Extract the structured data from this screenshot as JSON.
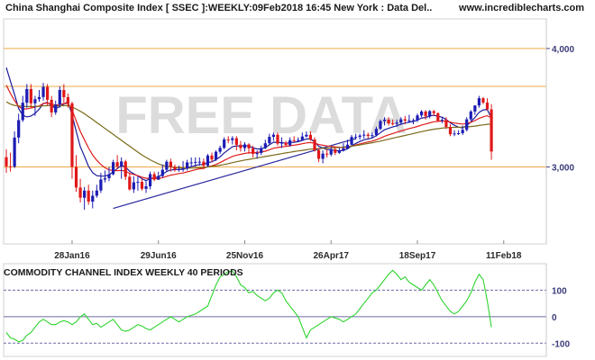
{
  "header": {
    "title": "China Shanghai Composite Index [ SSEC ]:WEEKLY:09Feb2018 16:45 New York : Data Del..",
    "website": "www.incrediblecharts.com"
  },
  "watermark": "FREE DATA",
  "colors": {
    "up": "#1c1cb4",
    "down": "#e01818",
    "ma_fast": "#1c1c9c",
    "ma_mid": "#e01c1c",
    "ma_slow": "#7a6a18",
    "trendline": "#2a2aa0",
    "hline": "#f0a848",
    "cci_line": "#2ed42e",
    "watermark": "#dcdcdc",
    "frame": "#d0d0d0"
  },
  "chart_data": [
    {
      "type": "candlestick",
      "title": "China Shanghai Composite Index [ SSEC ]:WEEKLY:09Feb2018 16:45 New York : Data Del..",
      "x_tick_labels": [
        "28Jan16",
        "29Jun16",
        "25Nov16",
        "26Apr17",
        "18Sep17",
        "11Feb18"
      ],
      "x_tick_index": [
        16,
        37,
        58,
        79,
        100,
        121
      ],
      "y_ticks": [
        3000,
        4000
      ],
      "y_tick_labels": [
        "3,000",
        "4,000"
      ],
      "ylim": [
        2350,
        4250
      ],
      "horizontal_lines": [
        4000,
        3680,
        3000
      ],
      "trendline": {
        "from": [
          26,
          2650
        ],
        "to": [
          85,
          3240
        ]
      },
      "series": {
        "open": [
          3082,
          3005,
          3003,
          3248,
          3395,
          3542,
          3658,
          3537,
          3572,
          3590,
          3676,
          3567,
          3460,
          3526,
          3650,
          3589,
          3537,
          3000,
          2826,
          2740,
          2800,
          2707,
          2757,
          2801,
          2894,
          2905,
          2938,
          3040,
          3004,
          3046,
          2917,
          2810,
          2870,
          2874,
          2815,
          2836,
          2939,
          2892,
          2923,
          2976,
          3044,
          3000,
          2979,
          2980,
          2988,
          3038,
          3038,
          3042,
          3044,
          3010,
          3096,
          3063,
          3128,
          3161,
          3232,
          3227,
          3242,
          3187,
          3159,
          3190,
          3157,
          3109,
          3118,
          3158,
          3200,
          3254,
          3272,
          3197,
          3205,
          3184,
          3226,
          3222,
          3228,
          3257,
          3271,
          3231,
          3141,
          3069,
          3112,
          3105,
          3149,
          3119,
          3140,
          3156,
          3188,
          3253,
          3253,
          3265,
          3272,
          3261,
          3268,
          3321,
          3387,
          3399,
          3368,
          3365,
          3375,
          3402,
          3391,
          3394,
          3394,
          3435,
          3468,
          3428,
          3471,
          3454,
          3390,
          3397,
          3338,
          3276,
          3282,
          3285,
          3313,
          3402,
          3468,
          3519,
          3580,
          3543,
          3486
        ],
        "high": [
          3150,
          3120,
          3300,
          3450,
          3600,
          3700,
          3700,
          3600,
          3650,
          3710,
          3700,
          3600,
          3560,
          3680,
          3700,
          3620,
          3550,
          3100,
          2900,
          2830,
          2850,
          2800,
          2850,
          2950,
          2970,
          3000,
          3060,
          3100,
          3080,
          3060,
          2950,
          2920,
          2920,
          2900,
          2880,
          2960,
          2960,
          2960,
          3020,
          3060,
          3070,
          3020,
          3010,
          3050,
          3060,
          3080,
          3080,
          3080,
          3070,
          3110,
          3120,
          3140,
          3180,
          3250,
          3260,
          3260,
          3260,
          3220,
          3210,
          3200,
          3180,
          3140,
          3180,
          3230,
          3280,
          3290,
          3290,
          3250,
          3220,
          3250,
          3260,
          3250,
          3290,
          3300,
          3300,
          3250,
          3160,
          3140,
          3150,
          3170,
          3170,
          3160,
          3200,
          3230,
          3270,
          3280,
          3280,
          3310,
          3290,
          3290,
          3340,
          3400,
          3420,
          3420,
          3400,
          3400,
          3420,
          3430,
          3440,
          3410,
          3450,
          3480,
          3480,
          3480,
          3480,
          3460,
          3420,
          3420,
          3360,
          3310,
          3310,
          3350,
          3420,
          3480,
          3520,
          3600,
          3590,
          3580,
          3530
        ],
        "low": [
          2950,
          2960,
          2990,
          3200,
          3380,
          3500,
          3500,
          3430,
          3550,
          3560,
          3520,
          3420,
          3440,
          3500,
          3540,
          3500,
          2900,
          2790,
          2700,
          2638,
          2680,
          2650,
          2740,
          2780,
          2870,
          2880,
          2930,
          2980,
          2900,
          2890,
          2800,
          2780,
          2800,
          2800,
          2780,
          2810,
          2880,
          2890,
          2910,
          2960,
          2960,
          2960,
          2960,
          2960,
          2970,
          3000,
          3000,
          3010,
          2980,
          3000,
          3040,
          3050,
          3110,
          3150,
          3200,
          3190,
          3140,
          3130,
          3130,
          3110,
          3080,
          3070,
          3100,
          3150,
          3190,
          3220,
          3180,
          3160,
          3170,
          3170,
          3210,
          3210,
          3220,
          3250,
          3220,
          3130,
          3040,
          3030,
          3080,
          3090,
          3100,
          3110,
          3130,
          3150,
          3180,
          3230,
          3230,
          3240,
          3240,
          3240,
          3260,
          3310,
          3350,
          3350,
          3350,
          3340,
          3360,
          3360,
          3370,
          3360,
          3380,
          3420,
          3400,
          3410,
          3430,
          3380,
          3370,
          3320,
          3260,
          3260,
          3270,
          3270,
          3300,
          3390,
          3440,
          3500,
          3530,
          3480,
          3060
        ],
        "close": [
          3005,
          3003,
          3248,
          3395,
          3542,
          3658,
          3537,
          3572,
          3590,
          3676,
          3567,
          3460,
          3526,
          3650,
          3589,
          3537,
          3000,
          2826,
          2740,
          2800,
          2707,
          2757,
          2801,
          2894,
          2905,
          2938,
          3040,
          3004,
          3046,
          2917,
          2810,
          2870,
          2874,
          2815,
          2836,
          2939,
          2892,
          2923,
          2976,
          3044,
          3000,
          2979,
          2980,
          2988,
          3038,
          3038,
          3042,
          3044,
          3010,
          3096,
          3063,
          3128,
          3161,
          3232,
          3227,
          3242,
          3187,
          3159,
          3190,
          3157,
          3109,
          3118,
          3158,
          3200,
          3254,
          3272,
          3197,
          3205,
          3184,
          3226,
          3222,
          3228,
          3257,
          3271,
          3231,
          3141,
          3069,
          3112,
          3105,
          3149,
          3119,
          3140,
          3156,
          3188,
          3253,
          3253,
          3265,
          3272,
          3261,
          3268,
          3321,
          3387,
          3399,
          3368,
          3365,
          3375,
          3402,
          3391,
          3394,
          3394,
          3435,
          3468,
          3428,
          3471,
          3454,
          3390,
          3397,
          3338,
          3276,
          3282,
          3285,
          3313,
          3402,
          3468,
          3519,
          3580,
          3543,
          3486,
          3130
        ]
      },
      "moving_averages": [
        {
          "color": "ma_fast",
          "values": [
            3839,
            3723,
            3612,
            3492,
            3436,
            3422,
            3430,
            3453,
            3488,
            3536,
            3545,
            3518,
            3494,
            3510,
            3530,
            3551,
            3438,
            3301,
            3170,
            3091,
            3004,
            2952,
            2926,
            2922,
            2923,
            2934,
            2959,
            2986,
            3012,
            3000,
            2963,
            2942,
            2924,
            2901,
            2884,
            2902,
            2909,
            2917,
            2937,
            2962,
            2975,
            2977,
            2979,
            2979,
            2991,
            3002,
            3012,
            3020,
            3020,
            3036,
            3043,
            3062,
            3085,
            3118,
            3144,
            3171,
            3178,
            3177,
            3180,
            3176,
            3162,
            3152,
            3153,
            3164,
            3187,
            3209,
            3206,
            3206,
            3200,
            3205,
            3208,
            3213,
            3224,
            3237,
            3236,
            3212,
            3174,
            3160,
            3146,
            3146,
            3139,
            3136,
            3140,
            3152,
            3178,
            3198,
            3215,
            3229,
            3236,
            3245,
            3263,
            3290,
            3314,
            3326,
            3337,
            3347,
            3361,
            3370,
            3378,
            3383,
            3395,
            3413,
            3417,
            3430,
            3437,
            3427,
            3420,
            3400,
            3372,
            3352,
            3336,
            3330,
            3349,
            3381,
            3417,
            3461,
            3482,
            3484,
            3413
          ]
        },
        {
          "color": "ma_mid",
          "values": [
            3690,
            3620,
            3560,
            3510,
            3490,
            3490,
            3497,
            3505,
            3515,
            3535,
            3540,
            3530,
            3523,
            3528,
            3534,
            3536,
            3480,
            3390,
            3300,
            3230,
            3160,
            3100,
            3056,
            3020,
            2993,
            2975,
            2970,
            2968,
            2971,
            2964,
            2946,
            2936,
            2926,
            2914,
            2904,
            2905,
            2902,
            2902,
            2909,
            2921,
            2931,
            2937,
            2944,
            2949,
            2958,
            2967,
            2976,
            2984,
            2989,
            3001,
            3009,
            3021,
            3036,
            3055,
            3072,
            3089,
            3099,
            3106,
            3114,
            3120,
            3121,
            3122,
            3126,
            3133,
            3145,
            3158,
            3164,
            3170,
            3173,
            3179,
            3184,
            3189,
            3196,
            3203,
            3206,
            3201,
            3189,
            3183,
            3177,
            3174,
            3169,
            3166,
            3164,
            3167,
            3176,
            3185,
            3194,
            3203,
            3211,
            3218,
            3229,
            3244,
            3259,
            3271,
            3282,
            3293,
            3304,
            3314,
            3324,
            3332,
            3342,
            3354,
            3362,
            3372,
            3381,
            3384,
            3388,
            3386,
            3378,
            3371,
            3365,
            3362,
            3366,
            3377,
            3391,
            3410,
            3423,
            3432,
            3415
          ]
        },
        {
          "color": "ma_slow",
          "values": [
            3550,
            3530,
            3520,
            3515,
            3512,
            3510,
            3510,
            3510,
            3512,
            3515,
            3517,
            3517,
            3516,
            3516,
            3517,
            3517,
            3505,
            3490,
            3470,
            3450,
            3425,
            3400,
            3375,
            3350,
            3325,
            3300,
            3275,
            3250,
            3225,
            3200,
            3175,
            3150,
            3125,
            3100,
            3080,
            3060,
            3042,
            3026,
            3014,
            3006,
            3000,
            2996,
            2993,
            2991,
            2990,
            2990,
            2991,
            2993,
            2996,
            3000,
            3004,
            3008,
            3014,
            3020,
            3028,
            3036,
            3044,
            3051,
            3058,
            3064,
            3070,
            3076,
            3082,
            3088,
            3094,
            3100,
            3106,
            3112,
            3118,
            3124,
            3130,
            3135,
            3140,
            3145,
            3150,
            3153,
            3155,
            3157,
            3159,
            3161,
            3163,
            3165,
            3168,
            3171,
            3175,
            3180,
            3186,
            3192,
            3198,
            3204,
            3211,
            3218,
            3226,
            3234,
            3242,
            3250,
            3258,
            3266,
            3274,
            3282,
            3290,
            3298,
            3305,
            3312,
            3318,
            3323,
            3328,
            3331,
            3333,
            3334,
            3335,
            3336,
            3338,
            3341,
            3345,
            3350,
            3355,
            3360,
            3362
          ]
        }
      ]
    },
    {
      "type": "line",
      "title": "COMMODITY CHANNEL INDEX WEEKLY 40 PERIODS",
      "y_ticks": [
        100,
        0,
        -100
      ],
      "y_tick_labels": [
        "100",
        "0",
        "-100"
      ],
      "ylim": [
        -150,
        200
      ],
      "values": [
        -60,
        -80,
        -85,
        -95,
        -90,
        -70,
        -60,
        -40,
        -20,
        -10,
        -20,
        -30,
        -30,
        -20,
        -15,
        -20,
        -30,
        -20,
        0,
        10,
        -10,
        -30,
        -25,
        -40,
        -30,
        -20,
        -10,
        -30,
        -50,
        -55,
        -50,
        -40,
        -30,
        -35,
        -45,
        -50,
        -40,
        -30,
        -20,
        -10,
        0,
        -10,
        -20,
        -10,
        0,
        5,
        10,
        20,
        30,
        40,
        80,
        120,
        150,
        160,
        170,
        172,
        150,
        120,
        110,
        90,
        95,
        80,
        70,
        60,
        70,
        90,
        100,
        90,
        60,
        40,
        20,
        0,
        -40,
        -80,
        -50,
        -40,
        -30,
        -20,
        -10,
        0,
        -5,
        -10,
        -20,
        -10,
        0,
        10,
        30,
        50,
        70,
        90,
        100,
        120,
        140,
        160,
        175,
        160,
        140,
        150,
        130,
        120,
        110,
        100,
        120,
        140,
        120,
        90,
        60,
        40,
        20,
        10,
        20,
        40,
        60,
        90,
        130,
        160,
        140,
        60,
        -40
      ]
    }
  ]
}
